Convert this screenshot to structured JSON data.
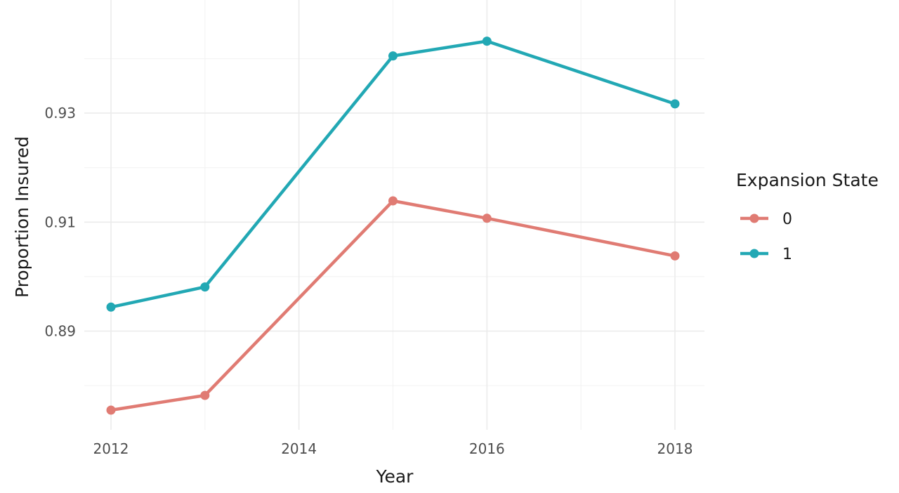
{
  "chart_data": {
    "type": "line",
    "title": "",
    "xlabel": "Year",
    "ylabel": "Proportion Insured",
    "x": [
      2012,
      2013,
      2015,
      2016,
      2018
    ],
    "xlim": [
      2012,
      2018
    ],
    "ylim": [
      0.8755,
      0.9505
    ],
    "x_ticks": [
      2012,
      2014,
      2016,
      2018
    ],
    "x_tick_labels": [
      "2012",
      "2014",
      "2016",
      "2018"
    ],
    "y_ticks": [
      0.89,
      0.91,
      0.93
    ],
    "y_tick_labels": [
      "0.89",
      "0.91",
      "0.93"
    ],
    "grid": true,
    "legend": {
      "title": "Expansion State",
      "position": "right"
    },
    "series": [
      {
        "name": "0",
        "color": "#E07B73",
        "values": [
          0.8755,
          0.8782,
          0.9139,
          0.9107,
          0.9038
        ]
      },
      {
        "name": "1",
        "color": "#22A8B4",
        "values": [
          0.8944,
          0.8981,
          0.9405,
          0.9432,
          0.9317
        ]
      }
    ]
  }
}
